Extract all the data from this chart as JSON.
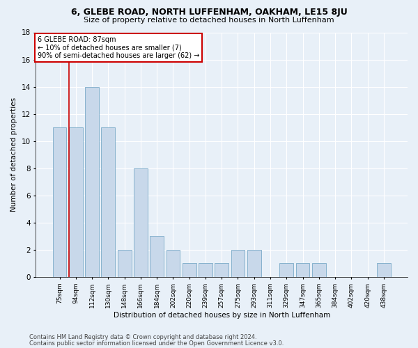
{
  "title1": "6, GLEBE ROAD, NORTH LUFFENHAM, OAKHAM, LE15 8JU",
  "title2": "Size of property relative to detached houses in North Luffenham",
  "xlabel": "Distribution of detached houses by size in North Luffenham",
  "ylabel": "Number of detached properties",
  "categories": [
    "75sqm",
    "94sqm",
    "112sqm",
    "130sqm",
    "148sqm",
    "166sqm",
    "184sqm",
    "202sqm",
    "220sqm",
    "239sqm",
    "257sqm",
    "275sqm",
    "293sqm",
    "311sqm",
    "329sqm",
    "347sqm",
    "365sqm",
    "384sqm",
    "402sqm",
    "420sqm",
    "438sqm"
  ],
  "values": [
    11,
    11,
    14,
    11,
    2,
    8,
    3,
    2,
    1,
    1,
    1,
    2,
    2,
    0,
    1,
    1,
    1,
    0,
    0,
    0,
    1
  ],
  "bar_color": "#c8d8ea",
  "bar_edge_color": "#7aaac8",
  "highlight_line_color": "#cc0000",
  "annotation_title": "6 GLEBE ROAD: 87sqm",
  "annotation_line1": "← 10% of detached houses are smaller (7)",
  "annotation_line2": "90% of semi-detached houses are larger (62) →",
  "annotation_box_color": "#ffffff",
  "annotation_box_edge": "#cc0000",
  "ylim": [
    0,
    18
  ],
  "yticks": [
    0,
    2,
    4,
    6,
    8,
    10,
    12,
    14,
    16,
    18
  ],
  "footer1": "Contains HM Land Registry data © Crown copyright and database right 2024.",
  "footer2": "Contains public sector information licensed under the Open Government Licence v3.0.",
  "background_color": "#e8f0f8",
  "plot_background": "#e8f0f8",
  "grid_color": "#ffffff"
}
